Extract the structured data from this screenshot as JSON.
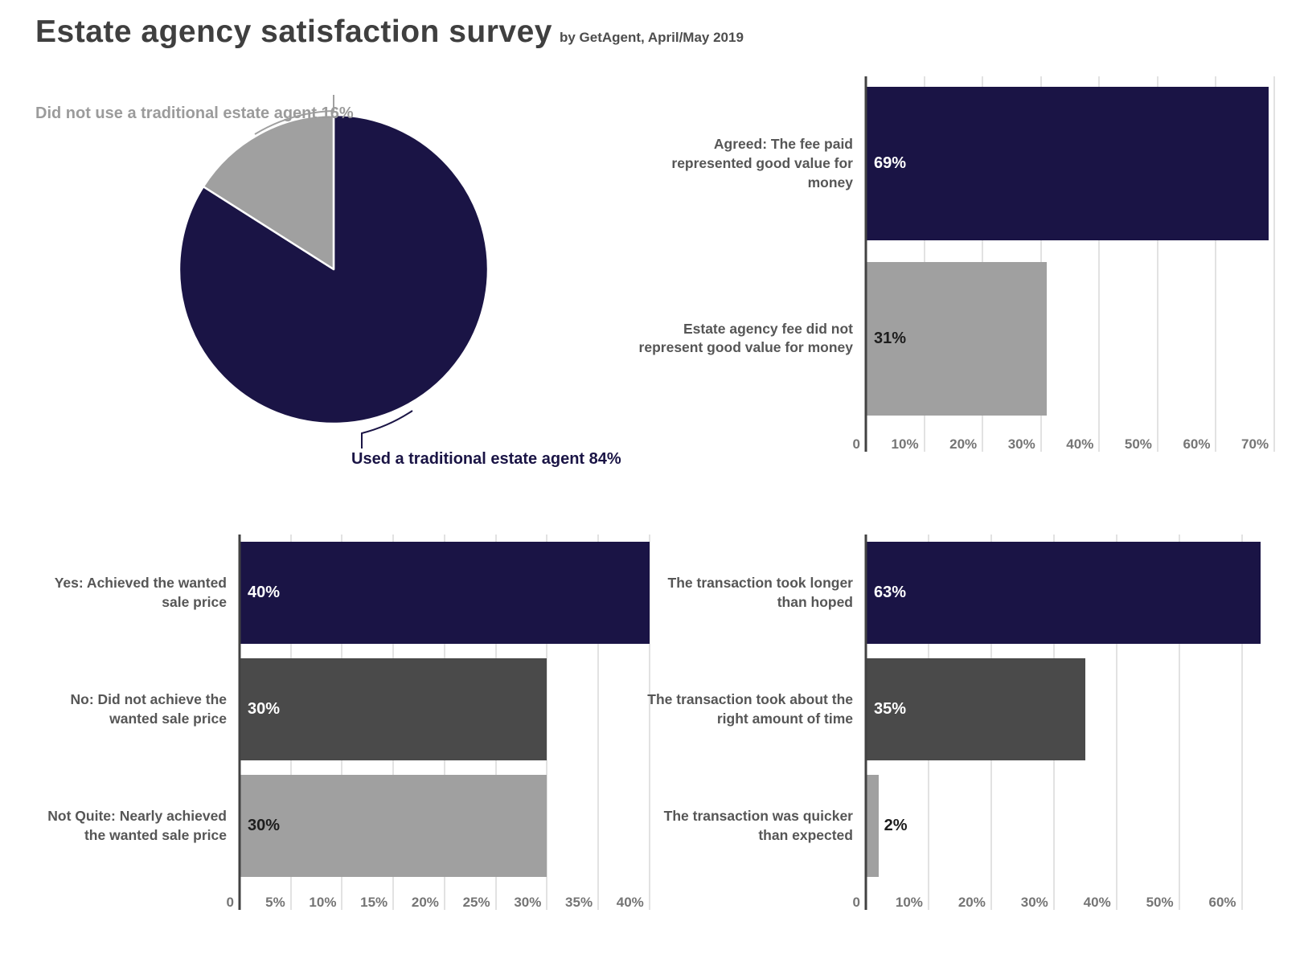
{
  "header": {
    "title": "Estate agency satisfaction survey",
    "subtitle": "by GetAgent, April/May 2019"
  },
  "colors": {
    "navy": "#1a1445",
    "dark_gray": "#4a4a4a",
    "light_gray": "#a0a0a0",
    "grid": "#e2e2e2",
    "axis": "#424242",
    "tick_text": "#757575",
    "category_text": "#565656",
    "value_on_dark": "#ffffff",
    "value_on_light": "#1d1d1d"
  },
  "chart_data": [
    {
      "id": "used-agent-pie",
      "type": "pie",
      "legend_position": "callout-labels",
      "slices": [
        {
          "label": "Used a traditional estate agent",
          "value": 84,
          "color_key": "navy",
          "display": "Used a traditional estate agent 84%"
        },
        {
          "label": "Did not use a traditional estate agent",
          "value": 16,
          "color_key": "light_gray",
          "display": "Did not use a traditional estate agent 16%"
        }
      ]
    },
    {
      "id": "fee-value-chart",
      "type": "bar",
      "orientation": "horizontal",
      "grid": true,
      "categories": [
        "Agreed: The fee paid represented good value for money",
        "Estate agency fee did not represent good value for money"
      ],
      "values": [
        69,
        31
      ],
      "value_labels": [
        "69%",
        "31%"
      ],
      "bar_color_keys": [
        "navy",
        "light_gray"
      ],
      "value_label_styles": [
        "light",
        "dark"
      ],
      "ticks": [
        0,
        10,
        20,
        30,
        40,
        50,
        60,
        70
      ],
      "tick_labels": [
        "0",
        "10%",
        "20%",
        "30%",
        "40%",
        "50%",
        "60%",
        "70%"
      ],
      "xlim": [
        0,
        74.4
      ],
      "xlabel": "",
      "ylabel": "",
      "title": ""
    },
    {
      "id": "sale-price-chart",
      "type": "bar",
      "orientation": "horizontal",
      "grid": true,
      "categories": [
        "Yes: Achieved the wanted sale price",
        "No: Did not achieve the wanted sale price",
        "Not Quite: Nearly achieved the wanted sale price"
      ],
      "values": [
        40,
        30,
        30
      ],
      "value_labels": [
        "40%",
        "30%",
        "30%"
      ],
      "bar_color_keys": [
        "navy",
        "dark_gray",
        "light_gray"
      ],
      "value_label_styles": [
        "light",
        "light",
        "dark"
      ],
      "ticks": [
        0,
        5,
        10,
        15,
        20,
        25,
        30,
        35,
        40
      ],
      "tick_labels": [
        "0",
        "5%",
        "10%",
        "15%",
        "20%",
        "25%",
        "30%",
        "35%",
        "40%"
      ],
      "xlim": [
        0,
        40.8
      ],
      "xlabel": "",
      "ylabel": "",
      "title": ""
    },
    {
      "id": "transaction-time-chart",
      "type": "bar",
      "orientation": "horizontal",
      "grid": true,
      "categories": [
        "The transaction took longer than hoped",
        "The transaction took about the right amount of time",
        "The transaction was quicker than expected"
      ],
      "values": [
        63,
        35,
        2
      ],
      "value_labels": [
        "63%",
        "35%",
        "2%"
      ],
      "bar_color_keys": [
        "navy",
        "dark_gray",
        "light_gray"
      ],
      "value_label_styles": [
        "light",
        "light",
        "dark"
      ],
      "ticks": [
        0,
        10,
        20,
        30,
        40,
        50,
        60
      ],
      "tick_labels": [
        "0",
        "10%",
        "20%",
        "30%",
        "40%",
        "50%",
        "60%"
      ],
      "xlim": [
        0,
        69.3
      ],
      "xlabel": "",
      "ylabel": "",
      "title": ""
    }
  ]
}
